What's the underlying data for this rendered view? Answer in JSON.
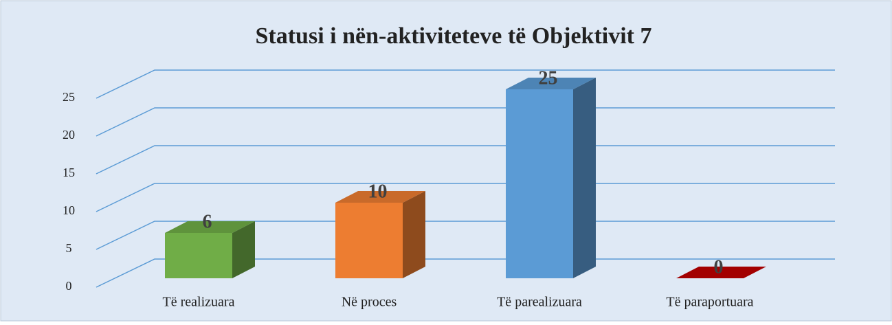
{
  "chart_data": {
    "type": "bar3d",
    "title": "Statusi i nën-aktiviteteve të Objektivit 7",
    "categories": [
      "Të realizuara",
      "Në proces",
      "Të parealizuara",
      "Të paraportuara"
    ],
    "values": [
      6,
      10,
      25,
      0
    ],
    "colors": [
      "#70ad47",
      "#ed7d31",
      "#5b9bd5",
      "#c00000"
    ],
    "ylim": [
      0,
      25
    ],
    "yticks": [
      0,
      5,
      10,
      15,
      20,
      25
    ],
    "grid": true
  }
}
